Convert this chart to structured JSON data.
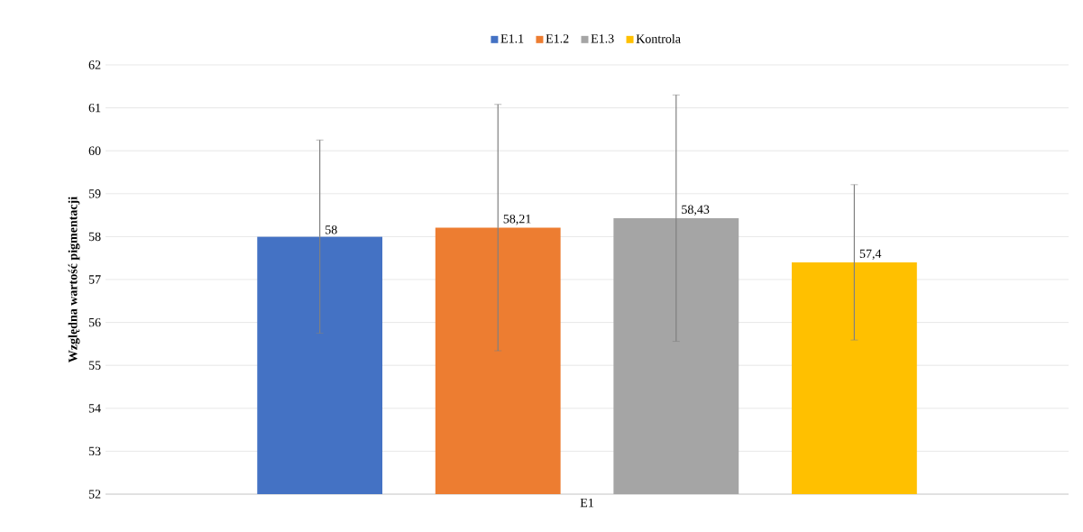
{
  "chart_data": {
    "type": "bar",
    "ylabel": "Względna wartość pigmentacji",
    "categories": [
      "E1"
    ],
    "series": [
      {
        "name": "E1.1",
        "color": "#4472c4",
        "values": [
          58
        ],
        "errors": [
          2.25
        ],
        "value_labels": [
          "58"
        ]
      },
      {
        "name": "E1.2",
        "color": "#ed7d31",
        "values": [
          58.21
        ],
        "errors": [
          2.87
        ],
        "value_labels": [
          "58,21"
        ]
      },
      {
        "name": "E1.3",
        "color": "#a5a5a5",
        "values": [
          58.43
        ],
        "errors": [
          2.87
        ],
        "value_labels": [
          "58,43"
        ]
      },
      {
        "name": "Kontrola",
        "color": "#ffc000",
        "values": [
          57.4
        ],
        "errors": [
          1.81
        ],
        "value_labels": [
          "57,4"
        ]
      }
    ],
    "ylim": [
      52,
      62
    ],
    "yticks": [
      52,
      53,
      54,
      55,
      56,
      57,
      58,
      59,
      60,
      61,
      62
    ],
    "grid": "y",
    "legend": "top"
  }
}
